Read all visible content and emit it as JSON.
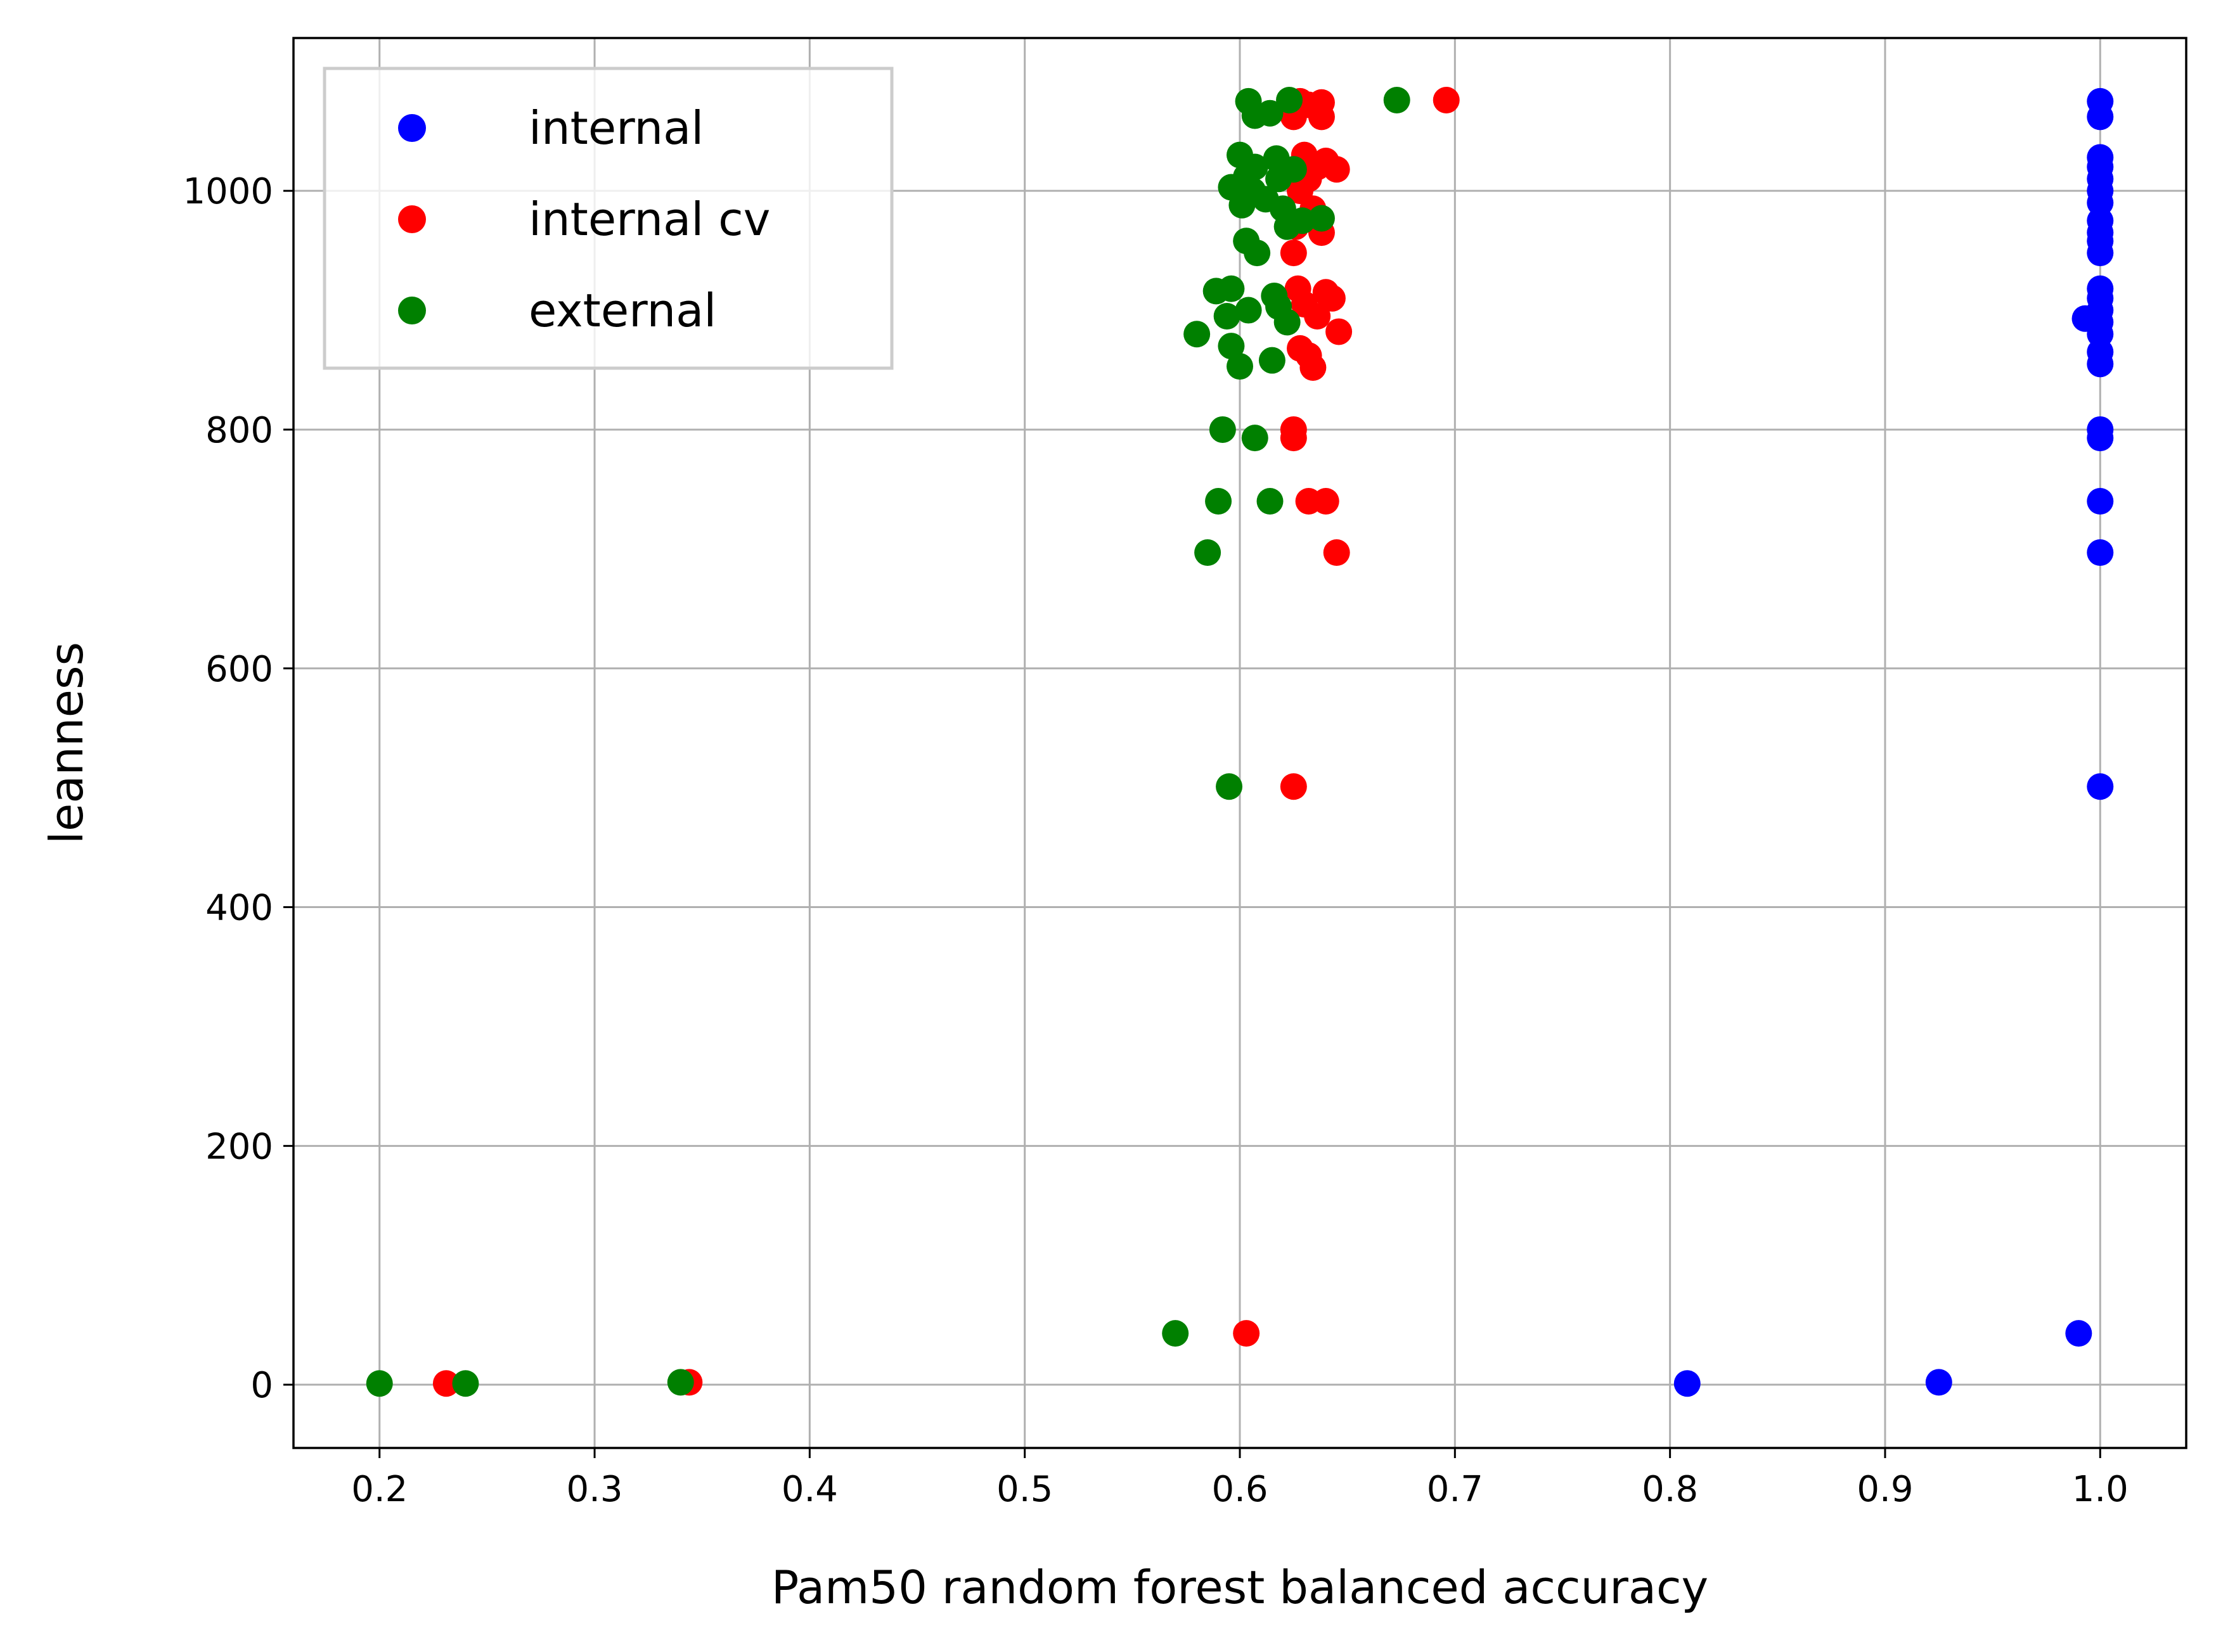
{
  "chart_data": {
    "type": "scatter",
    "title": "",
    "xlabel": "Pam50 random forest balanced accuracy",
    "ylabel": "leanness",
    "xlim": [
      0.16,
      1.04
    ],
    "ylim": [
      -53,
      1128
    ],
    "x_ticks": [
      0.2,
      0.3,
      0.4,
      0.5,
      0.6,
      0.7,
      0.8,
      0.9,
      1.0
    ],
    "x_tick_labels": [
      "0.2",
      "0.3",
      "0.4",
      "0.5",
      "0.6",
      "0.7",
      "0.8",
      "0.9",
      "1.0"
    ],
    "y_ticks": [
      0,
      200,
      400,
      600,
      800,
      1000
    ],
    "y_tick_labels": [
      "0",
      "200",
      "400",
      "600",
      "800",
      "1000"
    ],
    "grid": true,
    "legend_position": "top-left",
    "series": [
      {
        "name": "internal",
        "color": "#0000ff",
        "points": [
          [
            1.0,
            1075
          ],
          [
            1.0,
            1062
          ],
          [
            1.0,
            1028
          ],
          [
            1.0,
            1020
          ],
          [
            1.0,
            1010
          ],
          [
            1.0,
            1000
          ],
          [
            1.0,
            990
          ],
          [
            1.0,
            975
          ],
          [
            1.0,
            965
          ],
          [
            1.0,
            958
          ],
          [
            1.0,
            948
          ],
          [
            1.0,
            918
          ],
          [
            1.0,
            910
          ],
          [
            1.0,
            900
          ],
          [
            0.993,
            893
          ],
          [
            1.0,
            890
          ],
          [
            1.0,
            880
          ],
          [
            1.0,
            865
          ],
          [
            1.0,
            855
          ],
          [
            1.0,
            800
          ],
          [
            1.0,
            793
          ],
          [
            1.0,
            740
          ],
          [
            1.0,
            697
          ],
          [
            1.0,
            501
          ],
          [
            0.99,
            43
          ],
          [
            0.925,
            2
          ],
          [
            0.808,
            1
          ]
        ]
      },
      {
        "name": "internal cv",
        "color": "#ff0000",
        "points": [
          [
            0.696,
            1076
          ],
          [
            0.628,
            1075
          ],
          [
            0.638,
            1074
          ],
          [
            0.632,
            1072
          ],
          [
            0.625,
            1062
          ],
          [
            0.638,
            1062
          ],
          [
            0.63,
            1030
          ],
          [
            0.64,
            1025
          ],
          [
            0.636,
            1020
          ],
          [
            0.645,
            1018
          ],
          [
            0.632,
            1010
          ],
          [
            0.628,
            1000
          ],
          [
            0.634,
            985
          ],
          [
            0.626,
            970
          ],
          [
            0.638,
            965
          ],
          [
            0.625,
            948
          ],
          [
            0.627,
            918
          ],
          [
            0.64,
            915
          ],
          [
            0.643,
            910
          ],
          [
            0.63,
            905
          ],
          [
            0.636,
            895
          ],
          [
            0.646,
            882
          ],
          [
            0.628,
            868
          ],
          [
            0.632,
            862
          ],
          [
            0.634,
            852
          ],
          [
            0.625,
            800
          ],
          [
            0.625,
            793
          ],
          [
            0.632,
            740
          ],
          [
            0.64,
            740
          ],
          [
            0.645,
            697
          ],
          [
            0.625,
            501
          ],
          [
            0.603,
            43
          ],
          [
            0.344,
            2
          ],
          [
            0.231,
            1
          ]
        ]
      },
      {
        "name": "external",
        "color": "#008000",
        "points": [
          [
            0.604,
            1075
          ],
          [
            0.623,
            1076
          ],
          [
            0.673,
            1076
          ],
          [
            0.607,
            1063
          ],
          [
            0.614,
            1065
          ],
          [
            0.6,
            1030
          ],
          [
            0.617,
            1027
          ],
          [
            0.607,
            1020
          ],
          [
            0.625,
            1018
          ],
          [
            0.603,
            1012
          ],
          [
            0.618,
            1010
          ],
          [
            0.596,
            1003
          ],
          [
            0.606,
            1000
          ],
          [
            0.612,
            993
          ],
          [
            0.601,
            988
          ],
          [
            0.62,
            985
          ],
          [
            0.622,
            970
          ],
          [
            0.629,
            975
          ],
          [
            0.638,
            977
          ],
          [
            0.603,
            958
          ],
          [
            0.608,
            948
          ],
          [
            0.589,
            916
          ],
          [
            0.596,
            918
          ],
          [
            0.616,
            912
          ],
          [
            0.604,
            900
          ],
          [
            0.618,
            903
          ],
          [
            0.594,
            895
          ],
          [
            0.622,
            890
          ],
          [
            0.58,
            880
          ],
          [
            0.596,
            870
          ],
          [
            0.6,
            853
          ],
          [
            0.615,
            858
          ],
          [
            0.592,
            800
          ],
          [
            0.607,
            793
          ],
          [
            0.59,
            740
          ],
          [
            0.614,
            740
          ],
          [
            0.585,
            697
          ],
          [
            0.595,
            501
          ],
          [
            0.57,
            43
          ],
          [
            0.34,
            2
          ],
          [
            0.24,
            1
          ],
          [
            0.2,
            1
          ]
        ]
      }
    ]
  }
}
